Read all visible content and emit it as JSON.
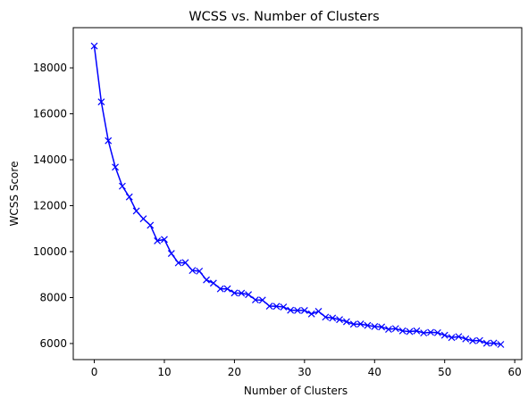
{
  "chart_data": {
    "type": "line",
    "title": "WCSS vs. Number of Clusters",
    "xlabel": "Number of Clusters",
    "ylabel": "WCSS Score",
    "xlim": [
      -3,
      61
    ],
    "ylim": [
      5300,
      19750
    ],
    "xticks": [
      0,
      10,
      20,
      30,
      40,
      50,
      60
    ],
    "yticks": [
      6000,
      8000,
      10000,
      12000,
      14000,
      16000,
      18000
    ],
    "grid": false,
    "legend": "none",
    "marker": "x",
    "color": "#0000ff",
    "series": [
      {
        "x": [
          0,
          1,
          2,
          3,
          4,
          5,
          6,
          7,
          8,
          9,
          10,
          11,
          12,
          13,
          14,
          15,
          16,
          17,
          18,
          19,
          20,
          21,
          22,
          23,
          24,
          25,
          26,
          27,
          28,
          29,
          30,
          31,
          32,
          33,
          34,
          35,
          36,
          37,
          38,
          39,
          40,
          41,
          42,
          43,
          44,
          45,
          46,
          47,
          48,
          49,
          50,
          51,
          52,
          53,
          54,
          55,
          56,
          57,
          58
        ],
        "values": [
          18950,
          16520,
          14830,
          13680,
          12850,
          12380,
          11770,
          11430,
          11150,
          10470,
          10530,
          9920,
          9510,
          9520,
          9180,
          9150,
          8770,
          8630,
          8380,
          8380,
          8200,
          8190,
          8130,
          7900,
          7890,
          7630,
          7620,
          7590,
          7450,
          7440,
          7440,
          7290,
          7400,
          7150,
          7110,
          7040,
          6950,
          6840,
          6850,
          6790,
          6740,
          6720,
          6620,
          6650,
          6550,
          6520,
          6550,
          6460,
          6490,
          6470,
          6360,
          6260,
          6300,
          6200,
          6120,
          6130,
          6010,
          6020,
          5960
        ]
      }
    ]
  }
}
